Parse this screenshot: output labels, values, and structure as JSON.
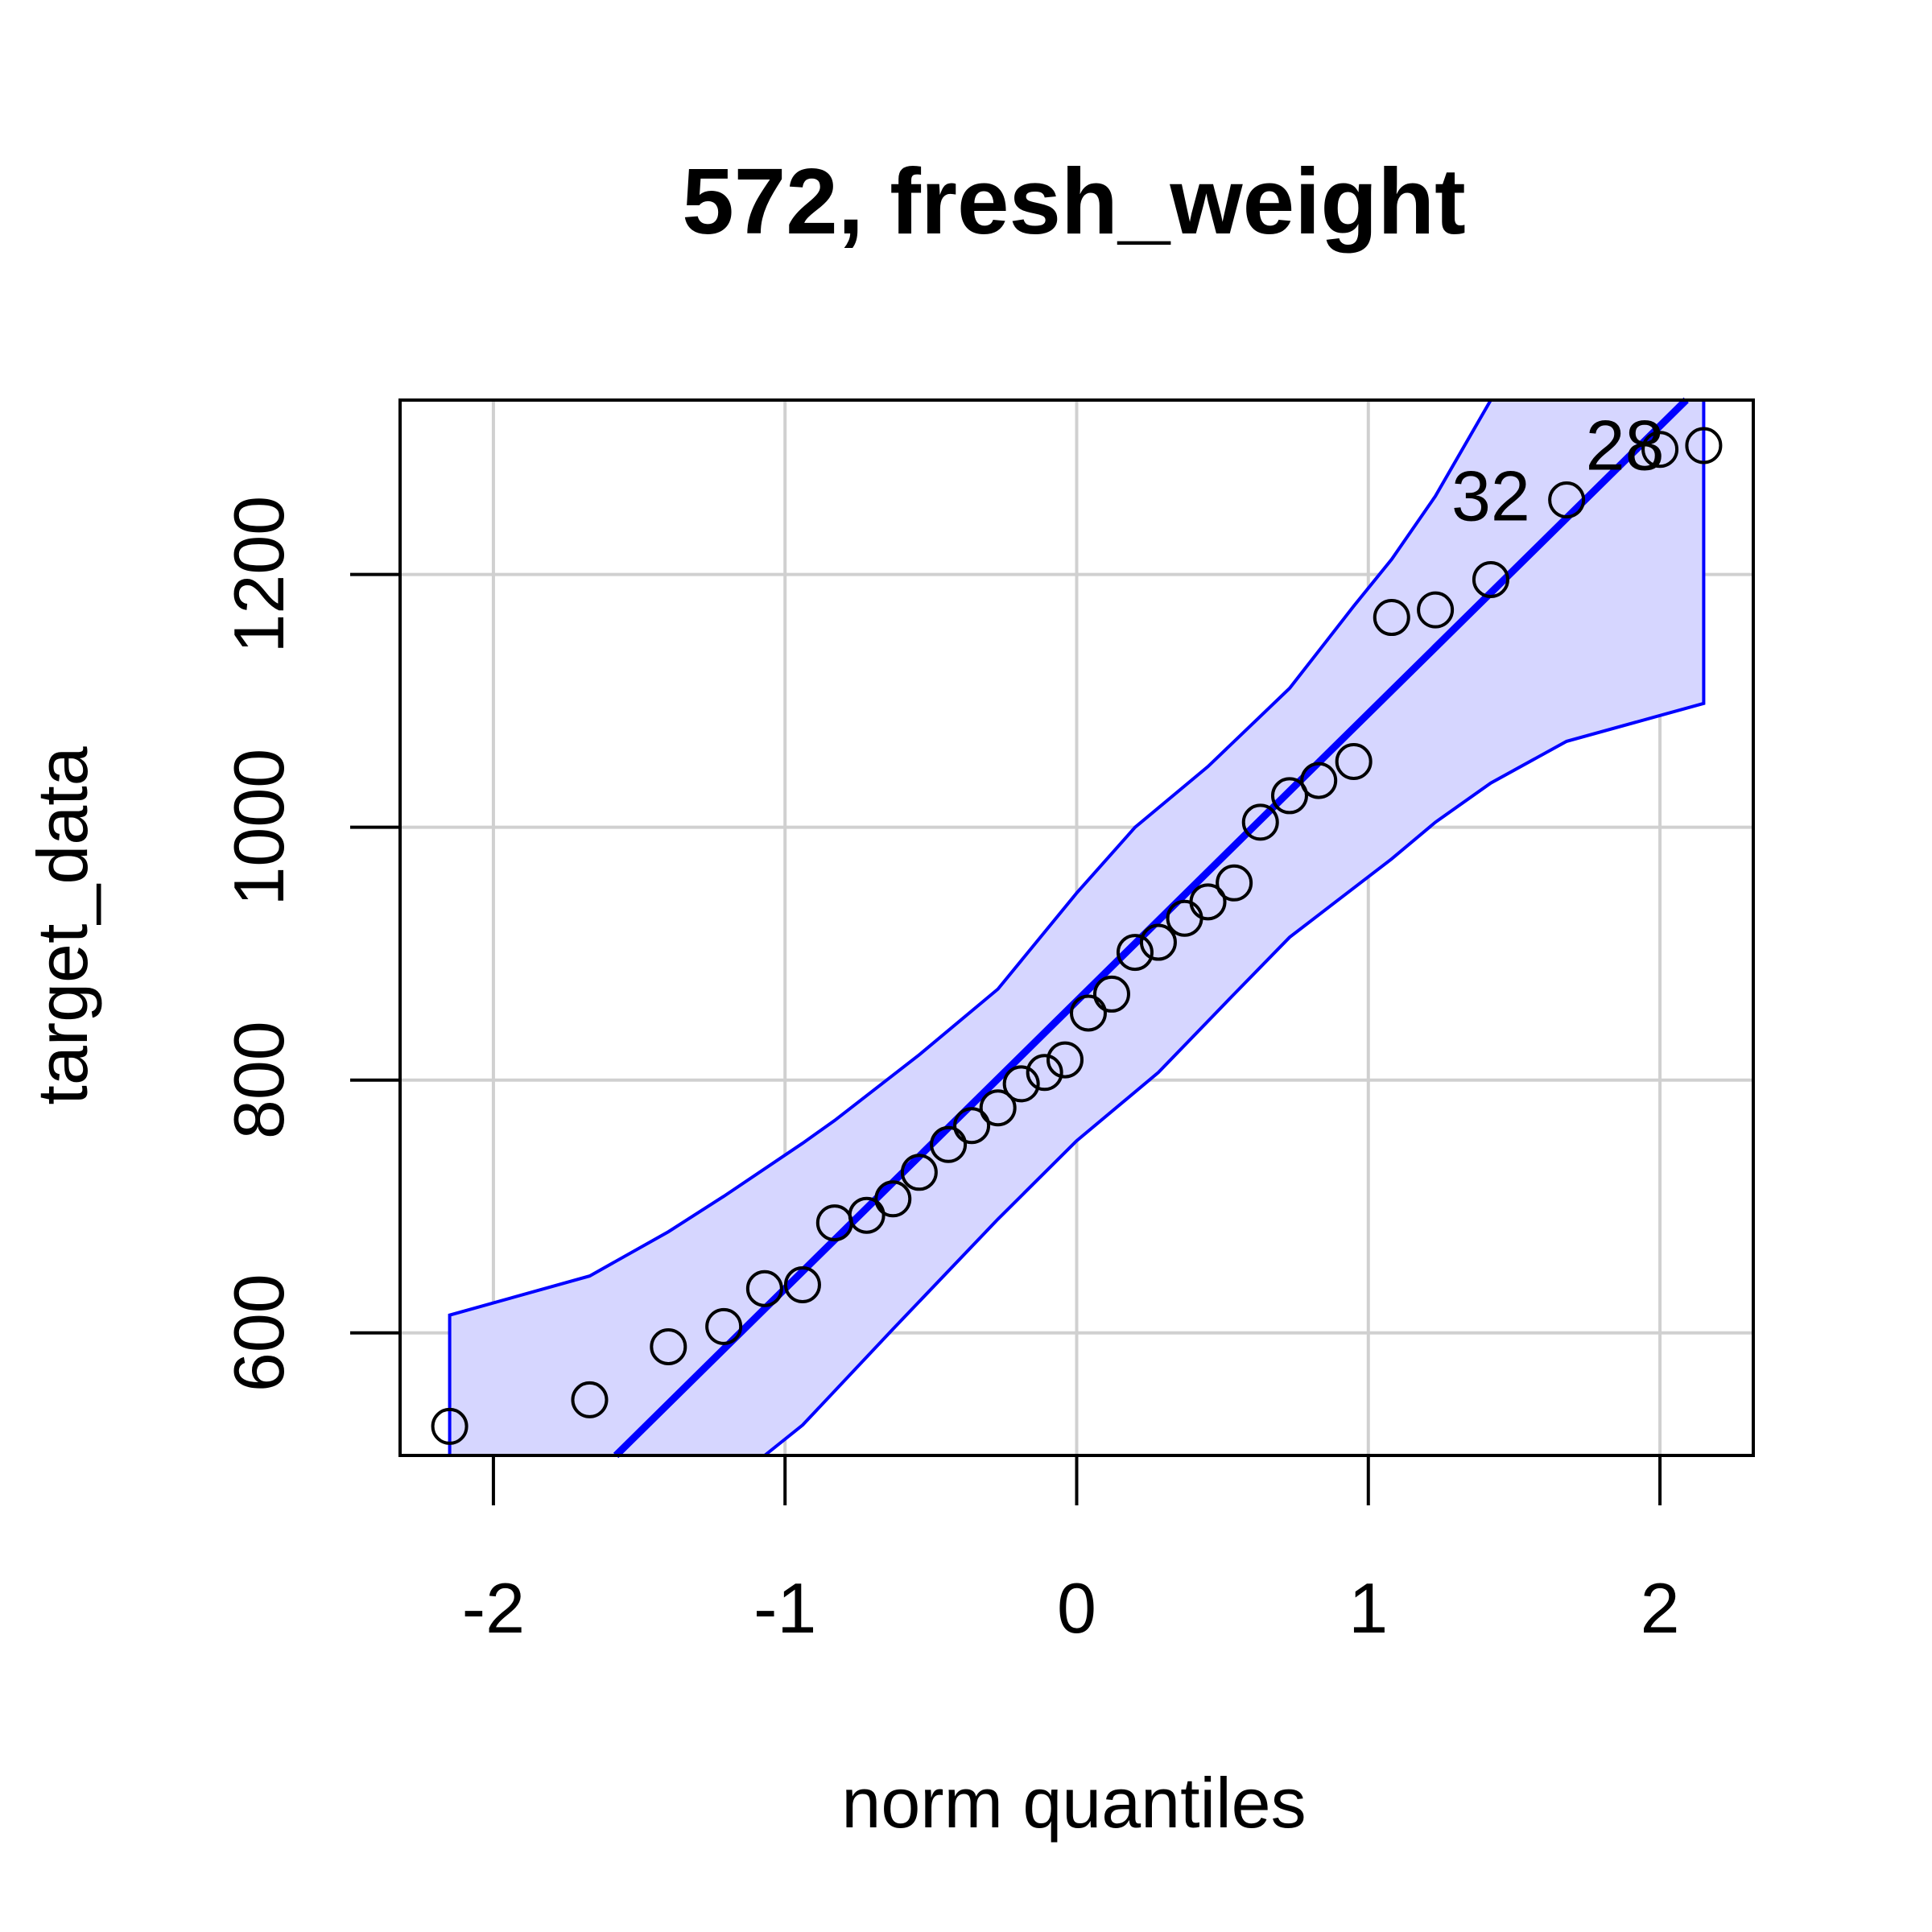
{
  "chart_data": {
    "type": "scatter",
    "title": "572, fresh_weight",
    "xlabel": "norm quantiles",
    "ylabel": "target_data",
    "xlim": [
      -2.32,
      2.32
    ],
    "ylim": [
      503,
      1338
    ],
    "x_ticks": [
      -2,
      -1,
      0,
      1,
      2
    ],
    "x_tick_labels": [
      "-2",
      "-1",
      "0",
      "1",
      "2"
    ],
    "y_ticks": [
      600,
      800,
      1000,
      1200
    ],
    "y_tick_labels": [
      "600",
      "800",
      "1000",
      "1200"
    ],
    "grid": true,
    "colors": {
      "line": "#0000ff",
      "band_fill": "#d6d6ff",
      "grid": "#d0d0d0",
      "points": "#000000"
    },
    "points": [
      {
        "x": -2.15,
        "y": 526
      },
      {
        "x": -1.67,
        "y": 547
      },
      {
        "x": -1.4,
        "y": 589
      },
      {
        "x": -1.21,
        "y": 605
      },
      {
        "x": -1.07,
        "y": 635
      },
      {
        "x": -0.94,
        "y": 638
      },
      {
        "x": -0.83,
        "y": 687
      },
      {
        "x": -0.72,
        "y": 693
      },
      {
        "x": -0.63,
        "y": 706
      },
      {
        "x": -0.54,
        "y": 727
      },
      {
        "x": -0.44,
        "y": 749
      },
      {
        "x": -0.36,
        "y": 764
      },
      {
        "x": -0.27,
        "y": 778
      },
      {
        "x": -0.19,
        "y": 797
      },
      {
        "x": -0.11,
        "y": 806
      },
      {
        "x": -0.04,
        "y": 816
      },
      {
        "x": 0.04,
        "y": 853
      },
      {
        "x": 0.12,
        "y": 868
      },
      {
        "x": 0.2,
        "y": 901
      },
      {
        "x": 0.28,
        "y": 909
      },
      {
        "x": 0.37,
        "y": 928
      },
      {
        "x": 0.45,
        "y": 941
      },
      {
        "x": 0.54,
        "y": 956
      },
      {
        "x": 0.63,
        "y": 1004
      },
      {
        "x": 0.73,
        "y": 1025
      },
      {
        "x": 0.83,
        "y": 1037
      },
      {
        "x": 0.95,
        "y": 1052
      },
      {
        "x": 1.08,
        "y": 1166
      },
      {
        "x": 1.23,
        "y": 1172
      },
      {
        "x": 1.42,
        "y": 1196
      },
      {
        "x": 1.68,
        "y": 1259
      },
      {
        "x": 2.0,
        "y": 1299
      },
      {
        "x": 2.15,
        "y": 1302
      }
    ],
    "point_labels": [
      {
        "text": "32",
        "x": 1.42,
        "y": 1262
      },
      {
        "text": "28",
        "x": 1.88,
        "y": 1302
      }
    ],
    "reference_line": [
      {
        "x": -1.58,
        "y": 503
      },
      {
        "x": 2.09,
        "y": 1338
      }
    ],
    "confidence_band": {
      "upper": [
        {
          "x": -2.15,
          "y": 614
        },
        {
          "x": -1.67,
          "y": 645
        },
        {
          "x": -1.4,
          "y": 680
        },
        {
          "x": -1.21,
          "y": 708
        },
        {
          "x": -0.94,
          "y": 750
        },
        {
          "x": -0.83,
          "y": 768
        },
        {
          "x": -0.54,
          "y": 820
        },
        {
          "x": -0.27,
          "y": 872
        },
        {
          "x": 0.0,
          "y": 948
        },
        {
          "x": 0.2,
          "y": 1000
        },
        {
          "x": 0.45,
          "y": 1048
        },
        {
          "x": 0.73,
          "y": 1110
        },
        {
          "x": 0.95,
          "y": 1175
        },
        {
          "x": 1.08,
          "y": 1212
        },
        {
          "x": 1.23,
          "y": 1262
        },
        {
          "x": 1.42,
          "y": 1338
        }
      ],
      "lower": [
        {
          "x": -1.07,
          "y": 503
        },
        {
          "x": -0.94,
          "y": 527
        },
        {
          "x": -0.63,
          "y": 603
        },
        {
          "x": -0.27,
          "y": 690
        },
        {
          "x": 0.0,
          "y": 752
        },
        {
          "x": 0.28,
          "y": 806
        },
        {
          "x": 0.54,
          "y": 868
        },
        {
          "x": 0.73,
          "y": 913
        },
        {
          "x": 1.08,
          "y": 975
        },
        {
          "x": 1.23,
          "y": 1004
        },
        {
          "x": 1.42,
          "y": 1035
        },
        {
          "x": 1.68,
          "y": 1068
        },
        {
          "x": 2.15,
          "y": 1098
        }
      ],
      "x_min": -2.15,
      "x_max": 2.15
    }
  }
}
